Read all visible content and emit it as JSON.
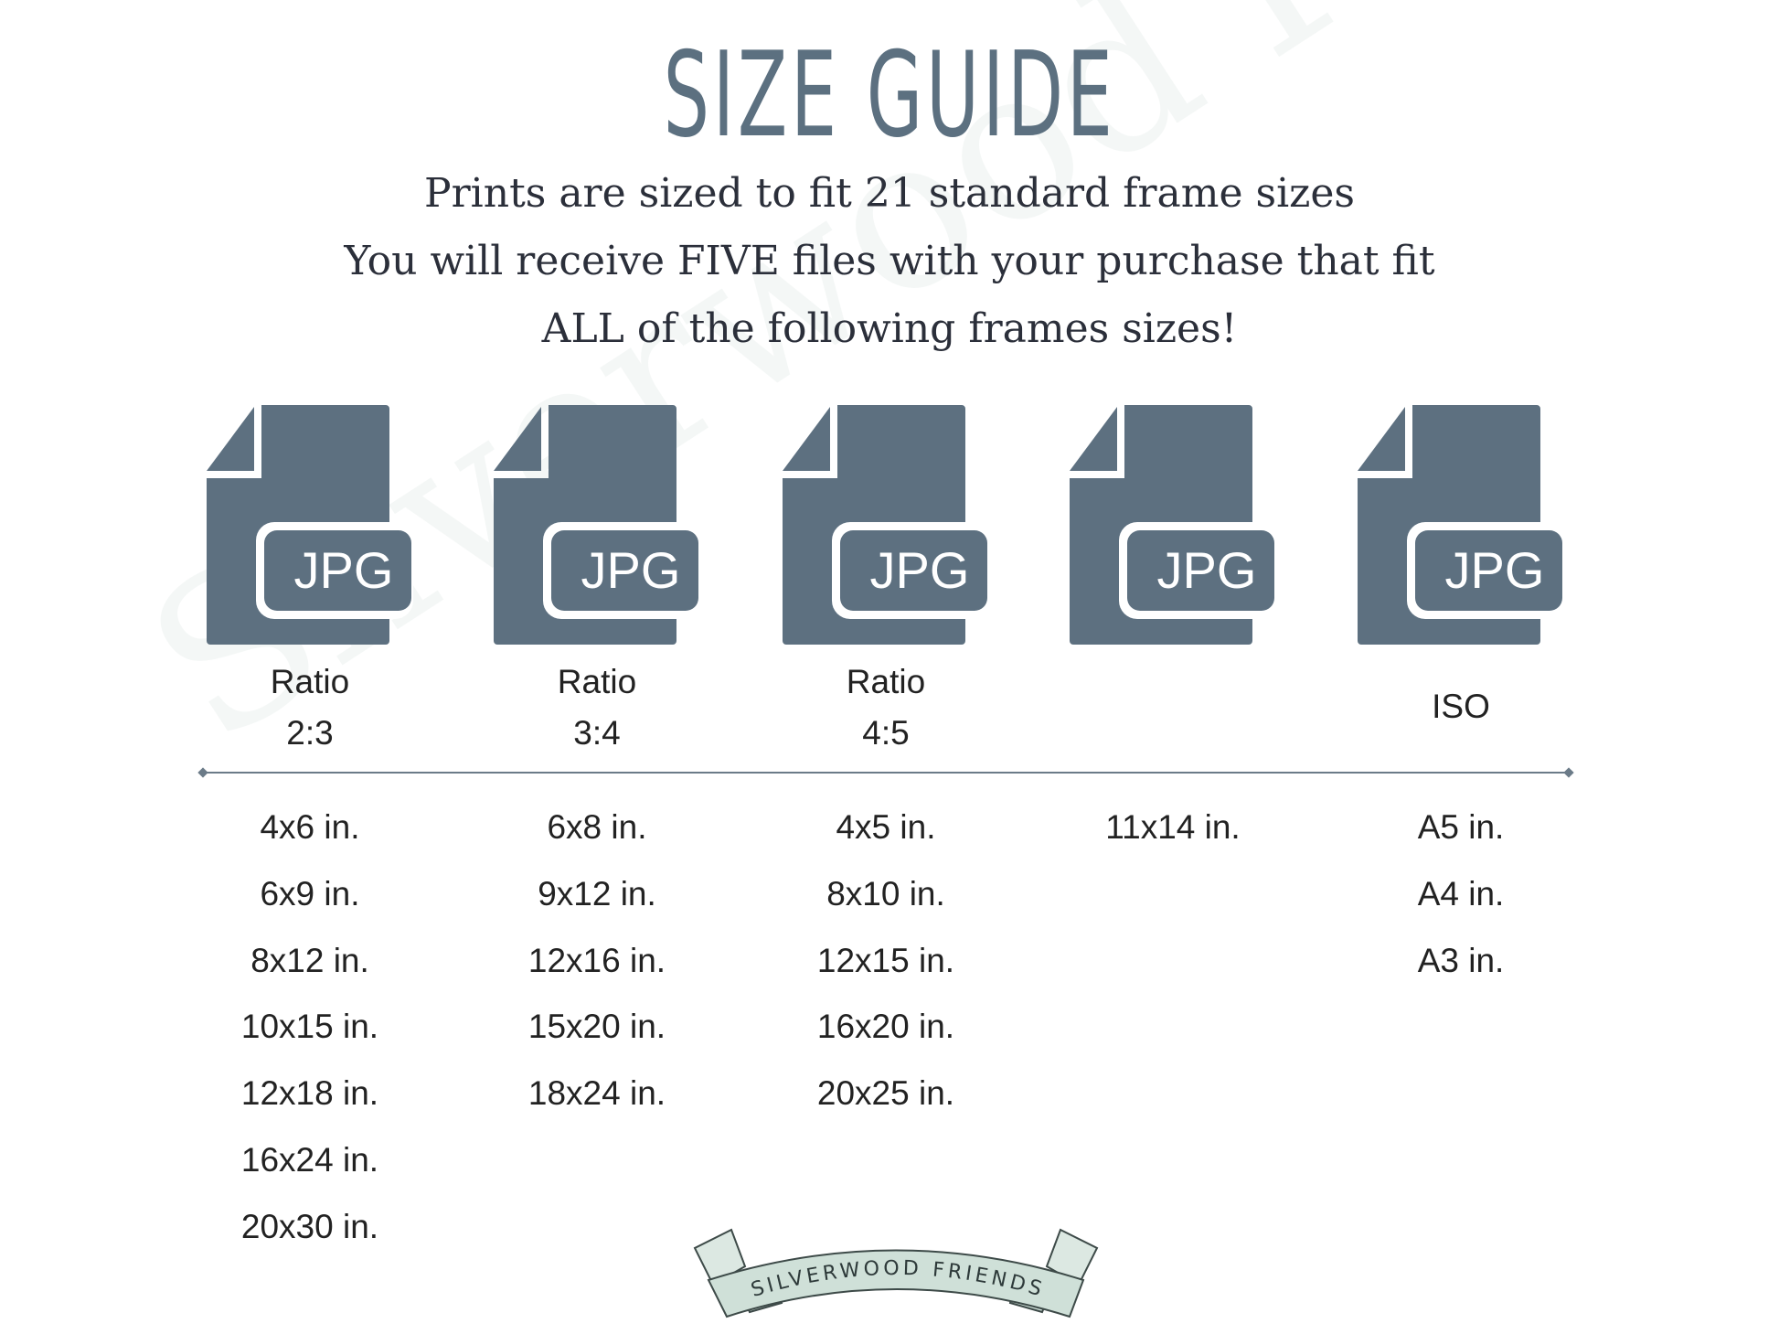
{
  "title": "SIZE GUIDE",
  "subtitle": [
    "Prints are sized to fit 21 standard frame sizes",
    "You will receive FIVE files with your purchase that fit",
    "ALL of the following frames sizes!"
  ],
  "watermark": "Silverwood Friends",
  "icon_color": "#5d7080",
  "columns": [
    {
      "icon": "jpg-file-icon",
      "badge": "JPG",
      "label": [
        "Ratio",
        "2:3"
      ],
      "sizes": [
        "4x6 in.",
        "6x9 in.",
        "8x12 in.",
        "10x15 in.",
        "12x18 in.",
        "16x24 in.",
        "20x30 in."
      ]
    },
    {
      "icon": "jpg-file-icon",
      "badge": "JPG",
      "label": [
        "Ratio",
        "3:4"
      ],
      "sizes": [
        "6x8 in.",
        "9x12 in.",
        "12x16 in.",
        "15x20 in.",
        "18x24 in."
      ]
    },
    {
      "icon": "jpg-file-icon",
      "badge": "JPG",
      "label": [
        "Ratio",
        "4:5"
      ],
      "sizes": [
        "4x5 in.",
        "8x10 in.",
        "12x15 in.",
        "16x20 in.",
        "20x25 in."
      ]
    },
    {
      "icon": "jpg-file-icon",
      "badge": "JPG",
      "label": [],
      "sizes": [
        "11x14 in."
      ]
    },
    {
      "icon": "jpg-file-icon",
      "badge": "JPG",
      "label": [
        "ISO"
      ],
      "sizes": [
        "A5 in.",
        "A4 in.",
        "A3 in."
      ]
    }
  ],
  "logo": {
    "text": "SILVERWOOD FRIENDS",
    "color": "#cfe0d8"
  }
}
